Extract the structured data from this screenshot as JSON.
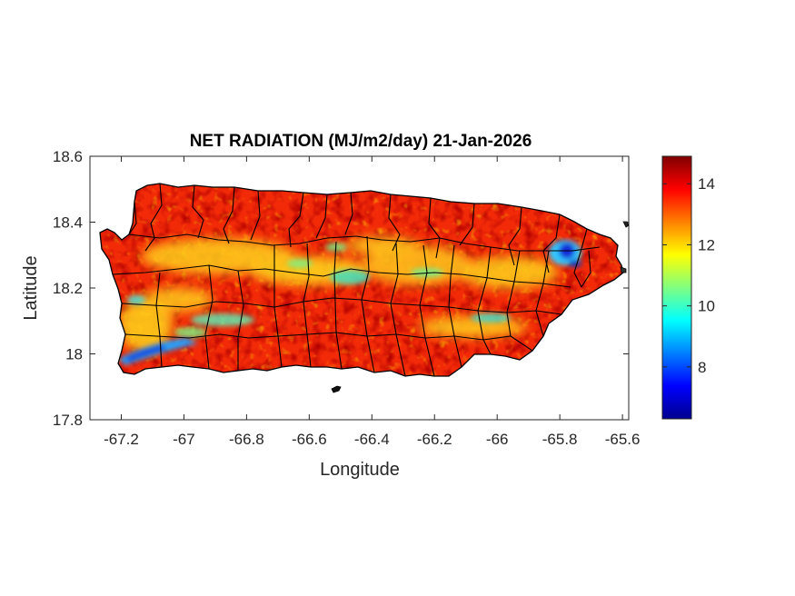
{
  "chart_data": {
    "type": "heatmap",
    "title": "NET RADIATION (MJ/m2/day) 21-Jan-2026",
    "xlabel": "Longitude",
    "ylabel": "Latitude",
    "xlim": [
      -67.3,
      -65.58
    ],
    "ylim": [
      17.8,
      18.6
    ],
    "x_ticks": [
      -67.2,
      -67,
      -66.8,
      -66.6,
      -66.4,
      -66.2,
      -66,
      -65.8,
      -65.6
    ],
    "x_tick_labels": [
      "-67.2",
      "-67",
      "-66.8",
      "-66.6",
      "-66.4",
      "-66.2",
      "-66",
      "-65.8",
      "-65.6"
    ],
    "y_ticks": [
      17.8,
      18,
      18.2,
      18.4,
      18.6
    ],
    "y_tick_labels": [
      "17.8",
      "18",
      "18.2",
      "18.4",
      "18.6"
    ],
    "colorbar": {
      "colormap": "jet",
      "min": 6.3,
      "max": 14.9,
      "ticks": [
        8,
        10,
        12,
        14
      ],
      "tick_labels": [
        "8",
        "10",
        "12",
        "14"
      ]
    },
    "field_summary": {
      "typical_range": [
        12.5,
        14.9
      ],
      "low_values_min": 7.0,
      "low_value_regions": [
        {
          "lon": -67.12,
          "lat": 18.02,
          "value": 8.5
        },
        {
          "lon": -65.79,
          "lat": 18.3,
          "value": 7.0
        },
        {
          "lon": -66.45,
          "lat": 18.23,
          "value": 10.5
        },
        {
          "lon": -66.1,
          "lat": 18.1,
          "value": 10.8
        }
      ]
    },
    "grid": false
  },
  "colors": {
    "axis": "#262626",
    "boundary": "#000000",
    "background": "#ffffff"
  }
}
